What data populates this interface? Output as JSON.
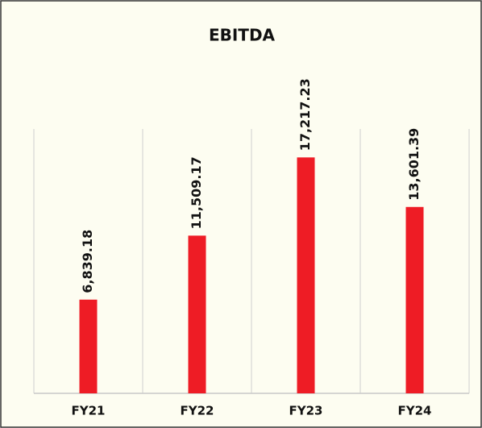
{
  "chart_data": {
    "type": "bar",
    "title": "EBITDA",
    "categories": [
      "FY21",
      "FY22",
      "FY23",
      "FY24"
    ],
    "values": [
      6839.18,
      11509.17,
      17217.23,
      13601.39
    ],
    "value_labels": [
      "6,839.18",
      "11,509.17",
      "17,217.23",
      "13,601.39"
    ],
    "color": "#ee1c25",
    "ylim": [
      0,
      20000
    ]
  }
}
